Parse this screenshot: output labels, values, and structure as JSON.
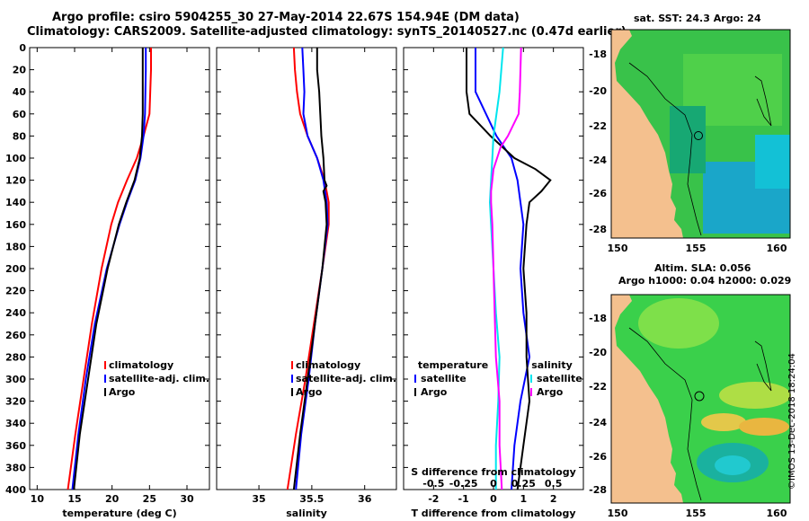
{
  "header": {
    "title_line1": "Argo profile: csiro 5904255_30 27-May-2014 22.67S 154.94E (DM data)",
    "title_line2": "Climatology: CARS2009. Satellite-adjusted climatology: synTS_20140527.nc (0.47d earlier)"
  },
  "colors": {
    "climatology": "#ff0000",
    "satellite": "#0000ff",
    "argo": "#000000",
    "t_satellite": "#00e5ee",
    "s_climatology": "#ff00ff",
    "land": "#f4c08e"
  },
  "chart_data": [
    {
      "id": "temperature",
      "type": "line",
      "xlabel": "temperature (deg C)",
      "ylabel": "",
      "xlim": [
        9,
        33
      ],
      "ylim": [
        400,
        0
      ],
      "xticks": [
        10,
        15,
        20,
        25,
        30
      ],
      "yticks": [
        0,
        20,
        40,
        60,
        80,
        100,
        120,
        140,
        160,
        180,
        200,
        220,
        240,
        260,
        280,
        300,
        320,
        340,
        360,
        380,
        400
      ],
      "legend": [
        "climatology",
        "satellite-adj. clim.",
        "Argo"
      ],
      "series": [
        {
          "name": "climatology",
          "color": "#ff0000",
          "depth": [
            0,
            20,
            60,
            80,
            100,
            120,
            140,
            160,
            200,
            250,
            300,
            350,
            400
          ],
          "values": [
            25.2,
            25.2,
            25.0,
            24.2,
            23.3,
            22.0,
            20.8,
            19.9,
            18.6,
            17.3,
            16.2,
            15.1,
            14.1
          ]
        },
        {
          "name": "satellite-adj. clim.",
          "color": "#0000ff",
          "depth": [
            0,
            20,
            60,
            80,
            100,
            120,
            140,
            160,
            200,
            250,
            300,
            350,
            400
          ],
          "values": [
            24.5,
            24.5,
            24.4,
            24.2,
            23.8,
            23.1,
            22.0,
            21.0,
            19.3,
            17.7,
            16.5,
            15.5,
            14.7
          ]
        },
        {
          "name": "Argo",
          "color": "#000000",
          "depth": [
            0,
            20,
            60,
            80,
            100,
            120,
            140,
            160,
            200,
            250,
            300,
            350,
            400
          ],
          "values": [
            24.1,
            24.1,
            24.1,
            24.0,
            23.7,
            23.0,
            21.9,
            20.9,
            19.4,
            17.9,
            16.8,
            15.7,
            14.9
          ]
        }
      ]
    },
    {
      "id": "salinity",
      "type": "line",
      "xlabel": "salinity",
      "ylabel": "",
      "xlim": [
        34.6,
        36.3
      ],
      "ylim": [
        400,
        0
      ],
      "xticks": [
        35,
        35.5,
        36
      ],
      "xticklabels": [
        "35",
        "35.5",
        "36"
      ],
      "legend": [
        "climatology",
        "satellite-adj. clim.",
        "Argo"
      ],
      "series": [
        {
          "name": "climatology",
          "color": "#ff0000",
          "depth": [
            0,
            20,
            40,
            60,
            80,
            100,
            120,
            140,
            160,
            200,
            250,
            300,
            350,
            400
          ],
          "values": [
            35.33,
            35.34,
            35.36,
            35.39,
            35.46,
            35.55,
            35.62,
            35.66,
            35.66,
            35.6,
            35.52,
            35.44,
            35.35,
            35.27
          ]
        },
        {
          "name": "satellite-adj. clim.",
          "color": "#0000ff",
          "depth": [
            0,
            20,
            40,
            60,
            80,
            100,
            120,
            140,
            160,
            200,
            250,
            300,
            350,
            400
          ],
          "values": [
            35.41,
            35.42,
            35.43,
            35.42,
            35.46,
            35.55,
            35.61,
            35.64,
            35.65,
            35.6,
            35.53,
            35.47,
            35.4,
            35.35
          ]
        },
        {
          "name": "Argo",
          "color": "#000000",
          "depth": [
            0,
            20,
            40,
            60,
            80,
            100,
            120,
            125,
            130,
            140,
            160,
            200,
            250,
            300,
            350,
            400
          ],
          "values": [
            35.55,
            35.55,
            35.57,
            35.58,
            35.59,
            35.61,
            35.62,
            35.64,
            35.61,
            35.63,
            35.64,
            35.6,
            35.53,
            35.46,
            35.39,
            35.33
          ]
        }
      ]
    },
    {
      "id": "differences",
      "type": "line",
      "xlabel": "T difference from climatology",
      "x2label": "S difference from climatology",
      "xlim": [
        -3,
        3
      ],
      "ylim": [
        400,
        0
      ],
      "xticks": [
        -2,
        -1,
        0,
        1,
        2
      ],
      "xticklabels": [
        "-2",
        "-1",
        "0",
        "1",
        "2"
      ],
      "x2lim": [
        -0.75,
        0.75
      ],
      "x2ticks": [
        -0.5,
        -0.25,
        0,
        0.25,
        0.5
      ],
      "x2ticklabels": [
        "-0.5",
        "-0.25",
        "0",
        "0.25",
        "0.5"
      ],
      "legend_temperature": {
        "title": "temperature",
        "entries": [
          "satellite",
          "Argo"
        ]
      },
      "legend_salinity": {
        "title": "salinity",
        "entries": [
          "satellite",
          "Argo"
        ]
      },
      "series": [
        {
          "name": "T satellite",
          "color": "#0000ff",
          "axis": "T",
          "depth": [
            0,
            40,
            80,
            100,
            120,
            140,
            160,
            200,
            240,
            280,
            320,
            360,
            400
          ],
          "values": [
            -0.6,
            -0.6,
            0.1,
            0.6,
            0.8,
            0.9,
            1.0,
            0.9,
            1.0,
            1.2,
            0.9,
            0.7,
            0.6
          ]
        },
        {
          "name": "T Argo",
          "color": "#000000",
          "axis": "T",
          "depth": [
            0,
            40,
            60,
            80,
            100,
            110,
            120,
            130,
            140,
            160,
            200,
            240,
            280,
            320,
            360,
            400
          ],
          "values": [
            -0.9,
            -0.9,
            -0.8,
            -0.1,
            0.7,
            1.4,
            1.9,
            1.6,
            1.2,
            1.1,
            1.0,
            1.1,
            1.1,
            1.2,
            1.0,
            0.8
          ]
        },
        {
          "name": "S satellite",
          "color": "#00e5ee",
          "axis": "S",
          "depth": [
            0,
            40,
            80,
            100,
            120,
            140,
            160,
            200,
            240,
            280,
            320,
            360,
            400
          ],
          "values": [
            0.08,
            0.05,
            0.0,
            -0.01,
            -0.02,
            -0.03,
            -0.02,
            0.0,
            0.02,
            0.05,
            0.04,
            0.02,
            0.02
          ]
        },
        {
          "name": "S Argo",
          "color": "#ff00ff",
          "axis": "S",
          "depth": [
            0,
            40,
            60,
            80,
            90,
            100,
            110,
            120,
            130,
            140,
            160,
            200,
            240,
            280,
            320,
            360,
            400
          ],
          "values": [
            0.23,
            0.22,
            0.21,
            0.12,
            0.06,
            0.03,
            0.0,
            -0.01,
            -0.02,
            -0.02,
            -0.01,
            0.0,
            0.01,
            0.02,
            0.05,
            0.05,
            0.07
          ]
        }
      ]
    }
  ],
  "maps": [
    {
      "id": "sst",
      "title": "sat. SST: 24.3 Argo: 24",
      "title2": "",
      "xticks": [
        "150",
        "155",
        "160"
      ],
      "yticks": [
        "-18",
        "-20",
        "-22",
        "-24",
        "-26",
        "-28"
      ]
    },
    {
      "id": "sla",
      "title": "Altim. SLA: 0.056",
      "title2": "Argo h1000: 0.04 h2000: 0.029",
      "xticks": [
        "150",
        "155",
        "160"
      ],
      "yticks": [
        "-18",
        "-20",
        "-22",
        "-24",
        "-26",
        "-28"
      ]
    }
  ],
  "footer": {
    "stamp": "©IMOS 13-Dec-2018 18:24:04"
  }
}
